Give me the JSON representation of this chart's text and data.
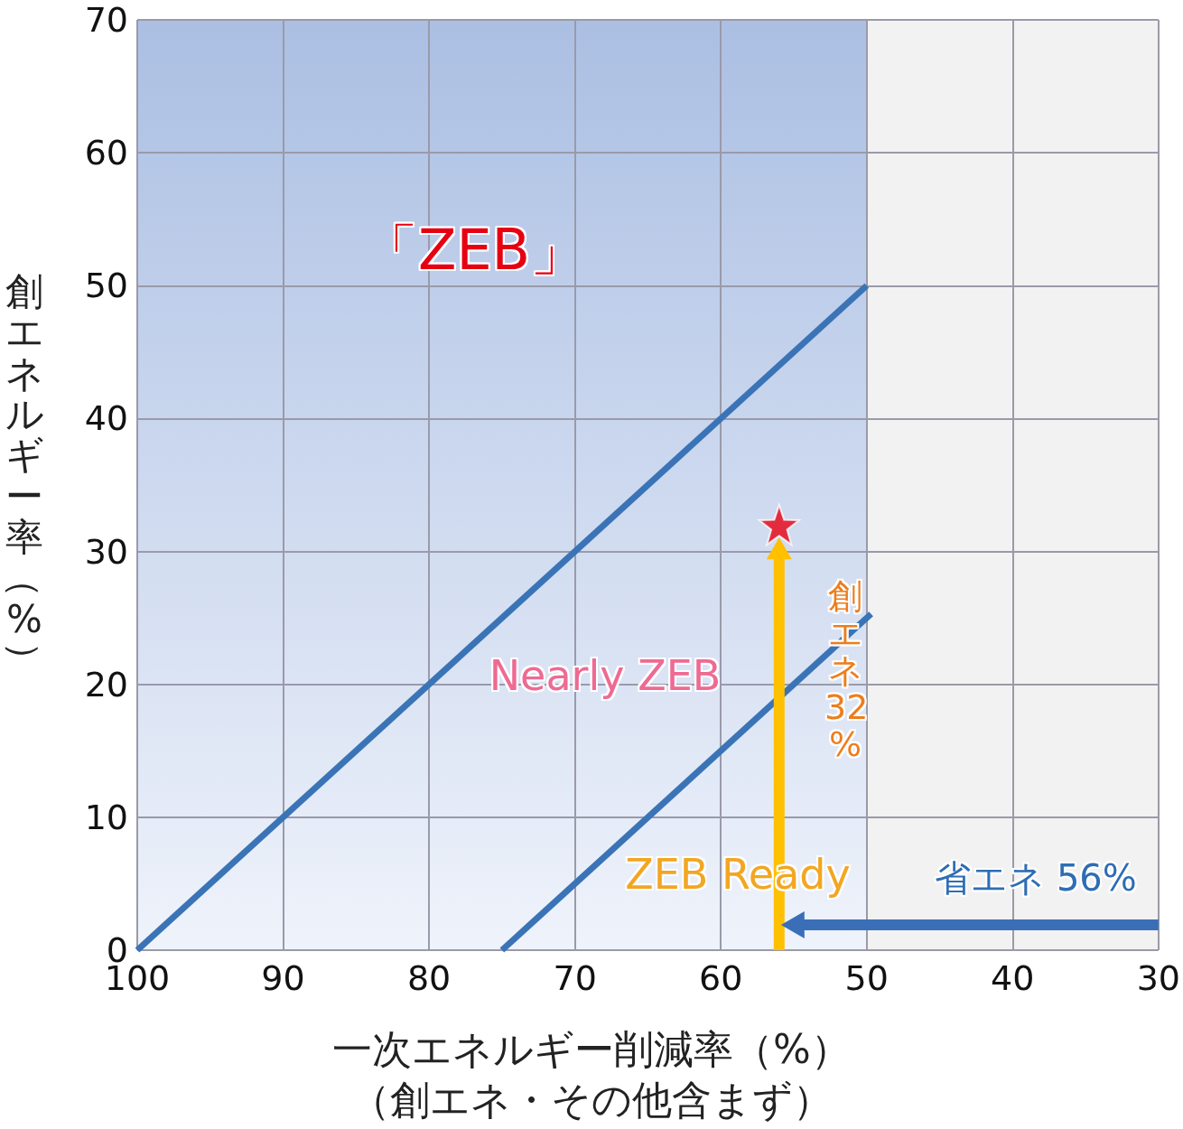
{
  "chart_data": {
    "type": "line",
    "xlabel": "一次エネルギー削減率（%）（創エネ・その他含まず）",
    "ylabel": "創エネルギー率（%）",
    "xlim": [
      100,
      30
    ],
    "xticks": [
      100,
      90,
      80,
      70,
      60,
      50,
      40,
      30
    ],
    "ylim": [
      0,
      70
    ],
    "yticks": [
      0,
      10,
      20,
      30,
      40,
      50,
      60,
      70
    ],
    "grid": true,
    "bands": [
      {
        "axis": "x",
        "from": 100,
        "to": 50,
        "color": "#abbfe3"
      }
    ],
    "series": [
      {
        "color": "#3a74b6",
        "x": [
          100,
          50
        ],
        "values": [
          0,
          50
        ]
      },
      {
        "color": "#3a74b6",
        "x": [
          75,
          49.7
        ],
        "values": [
          0,
          25.3
        ]
      },
      {
        "type": "scatter",
        "marker": "star",
        "color": "#e60012",
        "x": [
          56
        ],
        "values": [
          32
        ]
      }
    ],
    "annotations": [
      "「ZEB」",
      "Nearly ZEB",
      "ZEB Ready",
      "創エネ32%",
      "省エネ 56%"
    ]
  }
}
